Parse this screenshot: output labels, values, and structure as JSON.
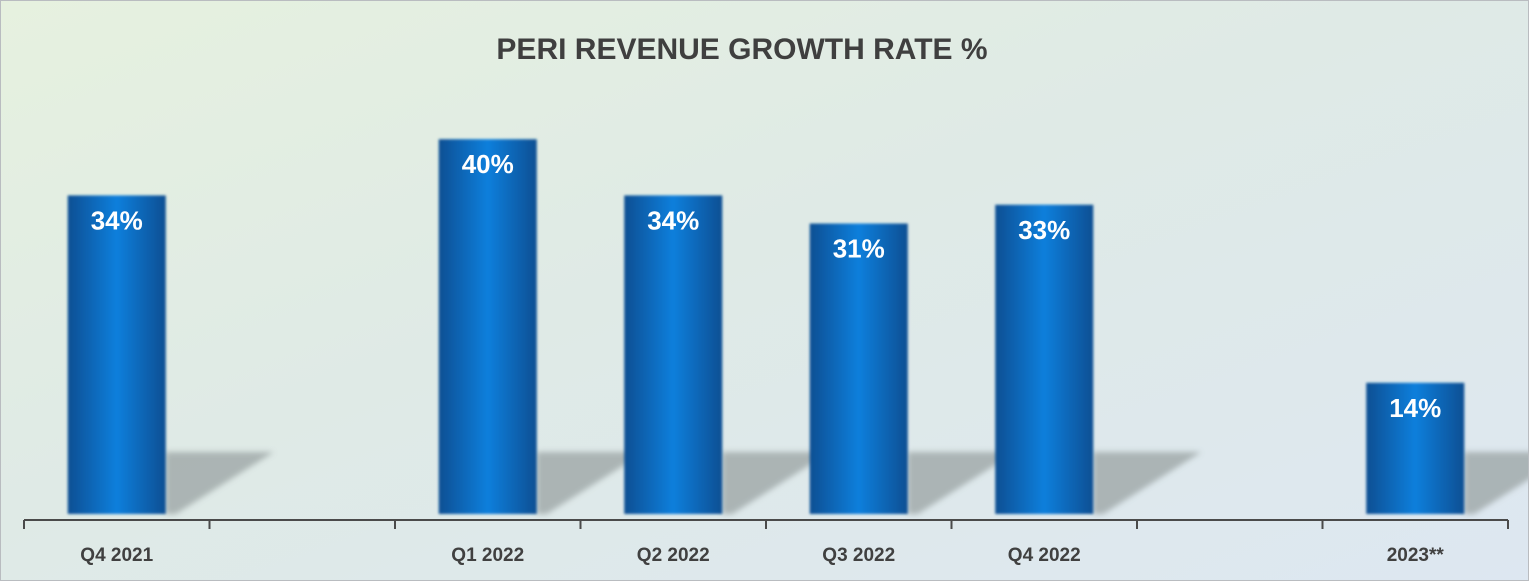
{
  "colors": {
    "bar_dark": "#0b4f93",
    "bar_light": "#0a7fdc",
    "axis": "#4a4a4a",
    "shadow": "#9aa3a3",
    "title": "#3f3f3f",
    "label_text": "#ffffff"
  },
  "chart_data": {
    "type": "bar",
    "title": "PERI REVENUE GROWTH RATE %",
    "xlabel": "",
    "ylabel": "",
    "ylim": [
      0,
      46
    ],
    "grid": false,
    "legend": "none",
    "slots": [
      "Q4 2021",
      "",
      "Q1 2022",
      "Q2 2022",
      "Q3 2022",
      "Q4 2022",
      "",
      "2023**"
    ],
    "categories": [
      "Q4 2021",
      "Q1 2022",
      "Q2 2022",
      "Q3 2022",
      "Q4 2022",
      "2023**"
    ],
    "values": [
      34,
      40,
      34,
      31,
      33,
      14
    ],
    "value_labels": [
      "34%",
      "40%",
      "34%",
      "31%",
      "33%",
      "14%"
    ]
  }
}
